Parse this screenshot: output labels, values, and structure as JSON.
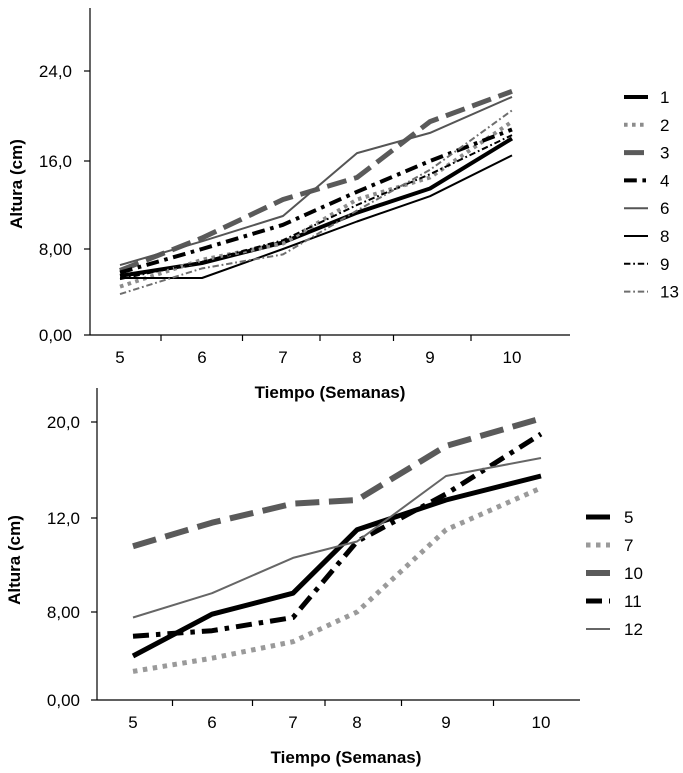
{
  "chart_data": [
    {
      "type": "line",
      "title": "",
      "xlabel": "Tiempo (Semanas)",
      "ylabel": "Altura (cm)",
      "x": [
        5,
        6,
        7,
        8,
        9,
        10
      ],
      "x_tick_labels": [
        "5",
        "6",
        "7",
        "8",
        "9",
        "10"
      ],
      "y_tick_labels": [
        "0,00",
        "8,00",
        "16,0",
        "24,0"
      ],
      "y_ticks": [
        0,
        8,
        16,
        24
      ],
      "ylim": [
        0,
        30
      ],
      "legend_position": "right",
      "series": [
        {
          "name": "1",
          "values": [
            5.5,
            6.7,
            8.6,
            11.3,
            13.5,
            18.0
          ],
          "color": "#000000",
          "dash": "solid",
          "width": 4
        },
        {
          "name": "2",
          "values": [
            4.5,
            7.0,
            8.5,
            12.5,
            14.5,
            19.5
          ],
          "color": "#8c8c8c",
          "dash": "dot",
          "width": 4
        },
        {
          "name": "3",
          "values": [
            6.0,
            9.0,
            12.5,
            14.5,
            19.5,
            22.2
          ],
          "color": "#5a5a5a",
          "dash": "dash",
          "width": 5
        },
        {
          "name": "4",
          "values": [
            5.8,
            8.0,
            10.2,
            13.2,
            16.0,
            18.8
          ],
          "color": "#000000",
          "dash": "dashdot",
          "width": 4
        },
        {
          "name": "6",
          "values": [
            6.5,
            8.7,
            11.0,
            16.7,
            18.5,
            21.7
          ],
          "color": "#555555",
          "dash": "solid",
          "width": 2
        },
        {
          "name": "8",
          "values": [
            5.3,
            5.3,
            8.0,
            10.5,
            12.8,
            16.5
          ],
          "color": "#000000",
          "dash": "solid",
          "width": 2
        },
        {
          "name": "9",
          "values": [
            5.2,
            6.8,
            8.8,
            12.0,
            14.8,
            18.3
          ],
          "color": "#000000",
          "dash": "dashdot",
          "width": 2
        },
        {
          "name": "13",
          "values": [
            3.8,
            6.2,
            7.5,
            11.5,
            15.2,
            20.5
          ],
          "color": "#6e6e6e",
          "dash": "dashdot",
          "width": 2
        }
      ]
    },
    {
      "type": "line",
      "title": "",
      "xlabel": "Tiempo (Semanas)",
      "ylabel": "Altura (cm)",
      "x": [
        5,
        6,
        7,
        8,
        9,
        10
      ],
      "x_tick_labels": [
        "5",
        "6",
        "7",
        "8",
        "9",
        "10"
      ],
      "y_tick_labels": [
        "0,00",
        "8,00",
        "12,0",
        "20,0"
      ],
      "y_ticks": [
        0,
        8,
        12,
        20
      ],
      "ylim": [
        0,
        24
      ],
      "legend_position": "right",
      "series": [
        {
          "name": "5",
          "values": [
            4.0,
            7.8,
            8.8,
            11.5,
            13.5,
            15.5
          ],
          "color": "#000000",
          "dash": "solid",
          "width": 5
        },
        {
          "name": "7",
          "values": [
            2.6,
            3.8,
            5.3,
            8.0,
            11.5,
            14.5
          ],
          "color": "#9a9a9a",
          "dash": "dot",
          "width": 5
        },
        {
          "name": "10",
          "values": [
            10.8,
            11.8,
            13.2,
            13.5,
            18.0,
            20.3
          ],
          "color": "#5a5a5a",
          "dash": "dash",
          "width": 6
        },
        {
          "name": "11",
          "values": [
            5.8,
            6.3,
            7.5,
            11.0,
            14.0,
            19.0
          ],
          "color": "#000000",
          "dash": "dashdot",
          "width": 5
        },
        {
          "name": "12",
          "values": [
            7.5,
            8.8,
            10.3,
            11.0,
            15.5,
            17.0
          ],
          "color": "#666666",
          "dash": "solid",
          "width": 2
        }
      ]
    }
  ]
}
